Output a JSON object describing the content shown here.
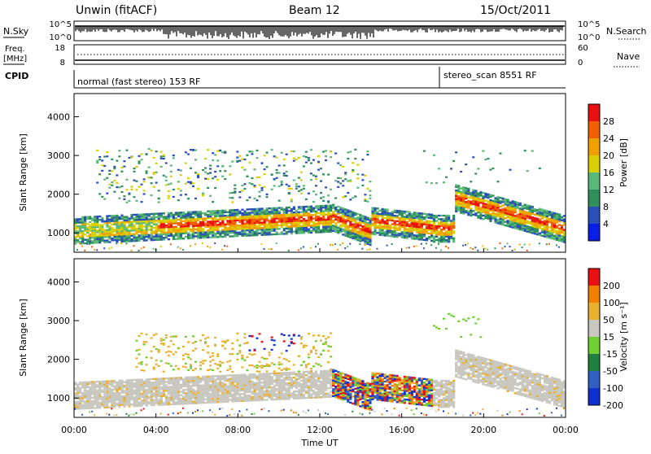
{
  "header": {
    "station": "Unwin (fitACF)",
    "beam": "Beam 12",
    "date": "15/Oct/2011"
  },
  "top_panels": {
    "nsky_label": "N.Sky",
    "nsearch_label": "N.Search",
    "nsky_ticks": [
      "10^5",
      "10^0"
    ],
    "nsky_right_ticks": [
      "10^5",
      "10^0"
    ],
    "freq_label_1": "Freq.",
    "freq_label_2": "[MHz]",
    "freq_ticks": [
      "18",
      "8"
    ],
    "nave_label": "Nave",
    "nave_ticks": [
      "60",
      "0"
    ],
    "cpid_label": "CPID",
    "cpid_1": "normal (fast stereo) 153 RF",
    "cpid_2": "stereo_scan 8551 RF"
  },
  "chart_data": [
    {
      "type": "heatmap",
      "title": "",
      "ylabel": "Slant Range [km]",
      "yticks": [
        "4000",
        "3000",
        "2000",
        "1000"
      ],
      "ylim": [
        500,
        4600
      ],
      "colorbar_label": "Power [dB]",
      "colorbar_ticks": [
        "28",
        "24",
        "20",
        "16",
        "12",
        "8",
        "4"
      ],
      "colors": [
        "#0a1ee6",
        "#2a4fb8",
        "#2f8f5a",
        "#5ab87a",
        "#d8d000",
        "#f0a000",
        "#f06000",
        "#e81010"
      ]
    },
    {
      "type": "heatmap",
      "title": "",
      "ylabel": "Slant Range [km]",
      "yticks": [
        "4000",
        "3000",
        "2000",
        "1000"
      ],
      "ylim": [
        500,
        4600
      ],
      "colorbar_label": "Velocity [m s⁻¹]",
      "colorbar_ticks": [
        "200",
        "100",
        "50",
        "15",
        "-15",
        "-50",
        "-100",
        "-200"
      ],
      "colors": [
        "#1030d0",
        "#3060c0",
        "#208040",
        "#70d030",
        "#c8c8c0",
        "#e8b030",
        "#f08000",
        "#e81010"
      ]
    }
  ],
  "xaxis": {
    "label": "Time UT",
    "ticks": [
      "00:00",
      "04:00",
      "08:00",
      "12:00",
      "16:00",
      "20:00",
      "00:00"
    ]
  }
}
